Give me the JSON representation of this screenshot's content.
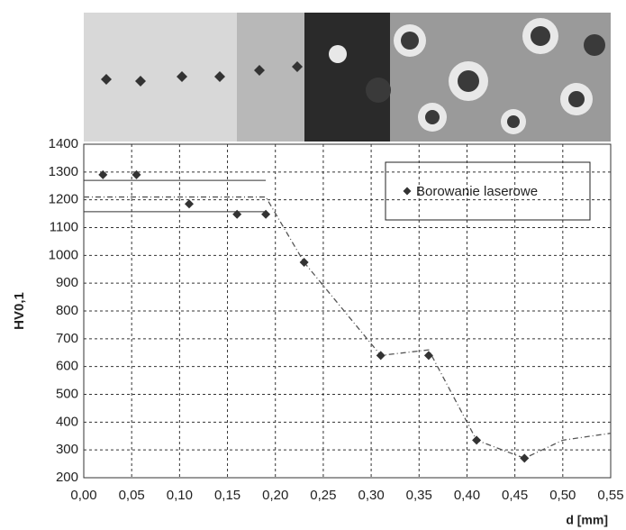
{
  "chart_data": {
    "type": "scatter",
    "x_label": "d [mm]",
    "y_label": "HV0,1",
    "series": [
      {
        "name": "Borowanie laserowe",
        "color": "#333333",
        "x": [
          0.02,
          0.055,
          0.11,
          0.16,
          0.19,
          0.23,
          0.31,
          0.36,
          0.41,
          0.46
        ],
        "values": [
          1290,
          1290,
          1185,
          1148,
          1148,
          975,
          640,
          640,
          335,
          270
        ]
      }
    ],
    "trend": {
      "x": [
        0.0,
        0.19,
        0.23,
        0.31,
        0.36,
        0.41,
        0.46,
        0.5,
        0.55
      ],
      "values": [
        1210,
        1210,
        975,
        640,
        660,
        335,
        270,
        335,
        360
      ]
    },
    "reference_lines": [
      {
        "value": 1270,
        "xlim": [
          0,
          0.19
        ]
      },
      {
        "value": 1157,
        "xlim": [
          0,
          0.19
        ]
      }
    ],
    "xlim": [
      0,
      0.55
    ],
    "xticks": [
      {
        "value": 0,
        "label": "0,00"
      },
      {
        "value": 0.05,
        "label": "0,05"
      },
      {
        "value": 0.1,
        "label": "0,10"
      },
      {
        "value": 0.15,
        "label": "0,15"
      },
      {
        "value": 0.2,
        "label": "0,20"
      },
      {
        "value": 0.25,
        "label": "0,25"
      },
      {
        "value": 0.3,
        "label": "0,30"
      },
      {
        "value": 0.35,
        "label": "0,35"
      },
      {
        "value": 0.4,
        "label": "0,40"
      },
      {
        "value": 0.45,
        "label": "0,45"
      },
      {
        "value": 0.5,
        "label": "0,50"
      },
      {
        "value": 0.55,
        "label": "0,55"
      }
    ],
    "ylim": [
      200,
      1400
    ],
    "yticks": [
      200,
      300,
      400,
      500,
      600,
      700,
      800,
      900,
      1000,
      1100,
      1200,
      1300,
      1400
    ],
    "grid": true,
    "legend": "upper right"
  }
}
